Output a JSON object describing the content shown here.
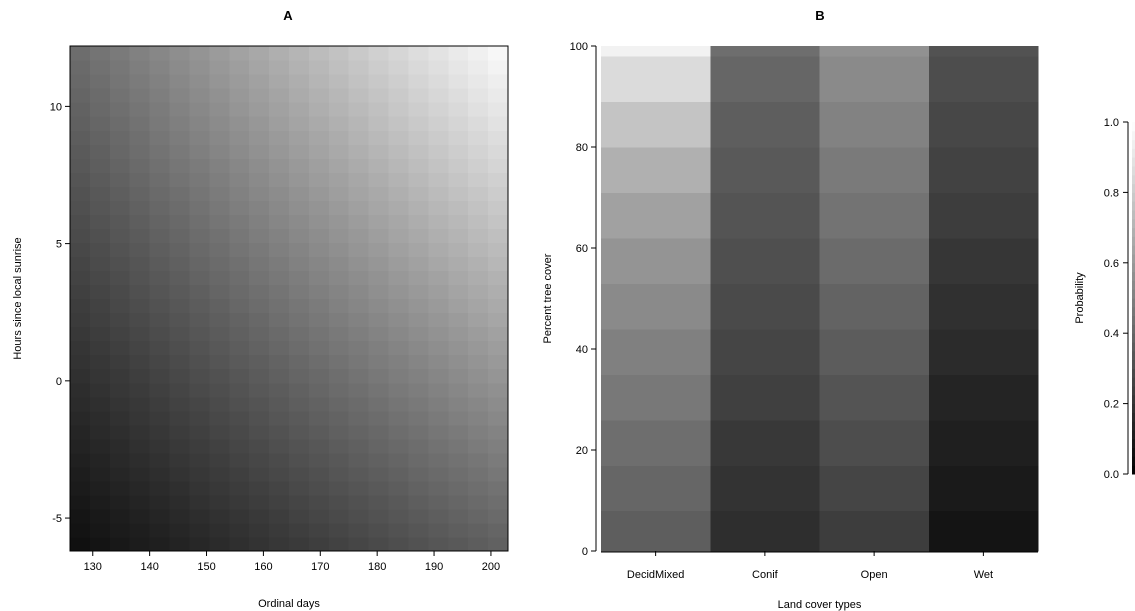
{
  "chart_data": [
    {
      "type": "heatmap",
      "panel_label": "A",
      "xlabel": "Ordinal days",
      "ylabel": "Hours since local sunrise",
      "xlim": [
        126,
        203
      ],
      "ylim": [
        -6.2,
        12.2
      ],
      "xticks": [
        130,
        140,
        150,
        160,
        170,
        180,
        190,
        200
      ],
      "yticks": [
        -5,
        0,
        5,
        10
      ],
      "grid": false,
      "colorscale": "grayscale, darker = lower probability",
      "probability_corners": {
        "x126_y-6.2": 0.05,
        "x203_y-6.2": 0.38,
        "x126_y12.2": 0.42,
        "x203_y12.2": 0.99
      }
    },
    {
      "type": "heatmap",
      "panel_label": "B",
      "xlabel": "Land cover types",
      "ylabel": "Percent tree cover",
      "categories": [
        "DecidMixed",
        "Conif",
        "Open",
        "Wet"
      ],
      "ylim": [
        0,
        100
      ],
      "yticks": [
        0,
        20,
        40,
        60,
        80,
        100
      ],
      "grid": false,
      "tree_cover_bins": [
        0,
        8,
        17,
        26,
        35,
        44,
        53,
        62,
        71,
        80,
        89,
        98
      ],
      "probabilities": {
        "DecidMixed": [
          0.37,
          0.4,
          0.43,
          0.47,
          0.5,
          0.54,
          0.58,
          0.63,
          0.69,
          0.77,
          0.86,
          0.95
        ],
        "Conif": [
          0.18,
          0.2,
          0.22,
          0.25,
          0.27,
          0.29,
          0.31,
          0.33,
          0.35,
          0.37,
          0.4,
          0.43
        ],
        "Open": [
          0.24,
          0.27,
          0.3,
          0.33,
          0.36,
          0.39,
          0.42,
          0.45,
          0.48,
          0.51,
          0.54,
          0.57
        ],
        "Wet": [
          0.08,
          0.1,
          0.12,
          0.14,
          0.17,
          0.19,
          0.21,
          0.24,
          0.26,
          0.28,
          0.3,
          0.32
        ]
      }
    }
  ],
  "colorbar": {
    "label": "Probability",
    "ticks": [
      0.0,
      0.2,
      0.4,
      0.6,
      0.8,
      1.0
    ],
    "tick_labels": [
      "0.0",
      "0.2",
      "0.4",
      "0.6",
      "0.8",
      "1.0"
    ],
    "range": [
      0,
      1
    ]
  }
}
